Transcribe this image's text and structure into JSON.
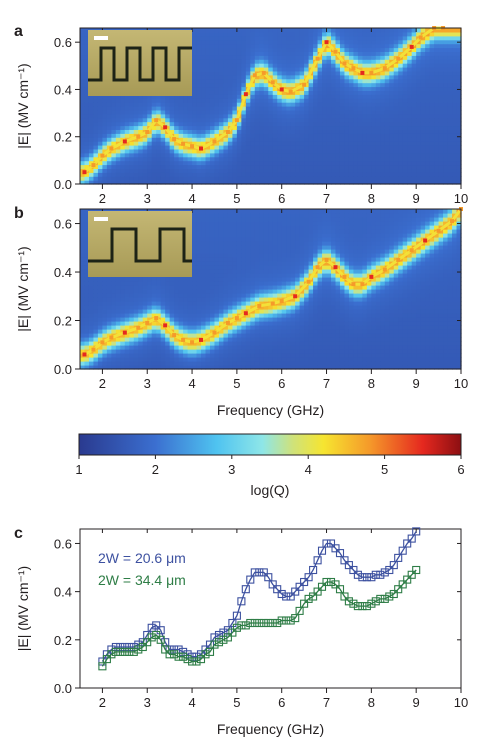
{
  "figure": {
    "x_axis_label": "Frequency (GHz)",
    "y_axis_label": "|E| (MV cm⁻¹)",
    "colorbar_label": "log(Q)"
  },
  "chart_data": [
    {
      "panel": "a",
      "type": "heatmap",
      "xlabel": "Frequency (GHz)",
      "ylabel": "|E| (MV cm⁻¹)",
      "xlim": [
        1.5,
        10
      ],
      "ylim": [
        0,
        0.66
      ],
      "x_ticks": [
        "2",
        "3",
        "4",
        "5",
        "6",
        "7",
        "8",
        "9",
        "10"
      ],
      "y_ticks": [
        "0.0",
        "0.2",
        "0.4",
        "0.6"
      ],
      "colorbar_range": [
        1,
        6
      ],
      "ridge": {
        "x": [
          1.6,
          1.8,
          2.0,
          2.2,
          2.5,
          2.8,
          3.0,
          3.2,
          3.4,
          3.6,
          3.8,
          4.0,
          4.2,
          4.5,
          4.8,
          5.0,
          5.2,
          5.4,
          5.6,
          5.8,
          6.0,
          6.2,
          6.5,
          6.8,
          7.0,
          7.2,
          7.4,
          7.6,
          7.8,
          8.0,
          8.3,
          8.6,
          8.9,
          9.1,
          9.4,
          9.6
        ],
        "y": [
          0.05,
          0.08,
          0.12,
          0.15,
          0.18,
          0.2,
          0.22,
          0.27,
          0.24,
          0.19,
          0.17,
          0.16,
          0.15,
          0.18,
          0.22,
          0.27,
          0.38,
          0.46,
          0.47,
          0.43,
          0.4,
          0.39,
          0.42,
          0.53,
          0.6,
          0.56,
          0.51,
          0.49,
          0.47,
          0.47,
          0.49,
          0.53,
          0.58,
          0.62,
          0.66,
          0.66
        ]
      }
    },
    {
      "panel": "b",
      "type": "heatmap",
      "xlabel": "Frequency (GHz)",
      "ylabel": "|E| (MV cm⁻¹)",
      "xlim": [
        1.5,
        10
      ],
      "ylim": [
        0,
        0.66
      ],
      "x_ticks": [
        "2",
        "3",
        "4",
        "5",
        "6",
        "7",
        "8",
        "9",
        "10"
      ],
      "y_ticks": [
        "0.0",
        "0.2",
        "0.4",
        "0.6"
      ],
      "colorbar_range": [
        1,
        6
      ],
      "ridge": {
        "x": [
          1.6,
          1.8,
          2.0,
          2.2,
          2.5,
          2.8,
          3.0,
          3.2,
          3.4,
          3.6,
          3.8,
          4.0,
          4.2,
          4.5,
          4.8,
          5.0,
          5.2,
          5.5,
          5.8,
          6.0,
          6.3,
          6.6,
          6.8,
          7.0,
          7.2,
          7.4,
          7.6,
          7.8,
          8.0,
          8.3,
          8.6,
          8.9,
          9.2,
          9.5,
          9.8,
          10.0
        ],
        "y": [
          0.06,
          0.08,
          0.11,
          0.13,
          0.15,
          0.17,
          0.19,
          0.21,
          0.18,
          0.14,
          0.12,
          0.11,
          0.12,
          0.15,
          0.19,
          0.21,
          0.23,
          0.26,
          0.27,
          0.28,
          0.3,
          0.36,
          0.42,
          0.45,
          0.42,
          0.38,
          0.35,
          0.35,
          0.38,
          0.41,
          0.45,
          0.49,
          0.53,
          0.57,
          0.61,
          0.66
        ]
      }
    },
    {
      "panel": "c",
      "type": "line",
      "xlabel": "Frequency (GHz)",
      "ylabel": "|E| (MV cm⁻¹)",
      "xlim": [
        1.5,
        10
      ],
      "ylim": [
        0,
        0.66
      ],
      "x_ticks": [
        "2",
        "3",
        "4",
        "5",
        "6",
        "7",
        "8",
        "9",
        "10"
      ],
      "y_ticks": [
        "0.0",
        "0.2",
        "0.4",
        "0.6"
      ],
      "legend": [
        "2W = 20.6 μm",
        "2W = 34.4 μm"
      ],
      "series": [
        {
          "name": "2W = 20.6 μm",
          "color": "#3d51a0",
          "x": [
            2.0,
            2.1,
            2.2,
            2.3,
            2.4,
            2.5,
            2.6,
            2.7,
            2.8,
            2.9,
            3.0,
            3.1,
            3.2,
            3.3,
            3.4,
            3.5,
            3.6,
            3.7,
            3.8,
            3.9,
            4.0,
            4.1,
            4.2,
            4.3,
            4.4,
            4.5,
            4.6,
            4.7,
            4.8,
            4.9,
            5.0,
            5.1,
            5.2,
            5.3,
            5.4,
            5.5,
            5.6,
            5.7,
            5.8,
            5.9,
            6.0,
            6.1,
            6.2,
            6.3,
            6.4,
            6.5,
            6.6,
            6.7,
            6.8,
            6.9,
            7.0,
            7.1,
            7.2,
            7.3,
            7.4,
            7.5,
            7.6,
            7.7,
            7.8,
            7.9,
            8.0,
            8.1,
            8.2,
            8.3,
            8.4,
            8.5,
            8.6,
            8.7,
            8.8,
            8.9,
            9.0
          ],
          "y": [
            0.11,
            0.14,
            0.16,
            0.17,
            0.17,
            0.17,
            0.17,
            0.17,
            0.18,
            0.19,
            0.22,
            0.25,
            0.26,
            0.24,
            0.19,
            0.16,
            0.16,
            0.16,
            0.15,
            0.14,
            0.13,
            0.13,
            0.14,
            0.16,
            0.18,
            0.21,
            0.22,
            0.23,
            0.24,
            0.27,
            0.3,
            0.36,
            0.41,
            0.45,
            0.48,
            0.48,
            0.48,
            0.46,
            0.43,
            0.41,
            0.39,
            0.38,
            0.38,
            0.4,
            0.42,
            0.44,
            0.46,
            0.49,
            0.53,
            0.57,
            0.6,
            0.6,
            0.58,
            0.56,
            0.53,
            0.51,
            0.49,
            0.47,
            0.46,
            0.46,
            0.46,
            0.47,
            0.47,
            0.48,
            0.49,
            0.51,
            0.54,
            0.57,
            0.6,
            0.62,
            0.65
          ]
        },
        {
          "name": "2W = 34.4 μm",
          "color": "#2e7d46",
          "x": [
            2.0,
            2.1,
            2.2,
            2.3,
            2.4,
            2.5,
            2.6,
            2.7,
            2.8,
            2.9,
            3.0,
            3.1,
            3.2,
            3.3,
            3.4,
            3.5,
            3.6,
            3.7,
            3.8,
            3.9,
            4.0,
            4.1,
            4.2,
            4.3,
            4.4,
            4.5,
            4.6,
            4.7,
            4.8,
            4.9,
            5.0,
            5.1,
            5.2,
            5.3,
            5.4,
            5.5,
            5.6,
            5.7,
            5.8,
            5.9,
            6.0,
            6.1,
            6.2,
            6.3,
            6.4,
            6.5,
            6.6,
            6.7,
            6.8,
            6.9,
            7.0,
            7.1,
            7.2,
            7.3,
            7.4,
            7.5,
            7.6,
            7.7,
            7.8,
            7.9,
            8.0,
            8.1,
            8.2,
            8.3,
            8.4,
            8.5,
            8.6,
            8.7,
            8.8,
            8.9,
            9.0
          ],
          "y": [
            0.09,
            0.12,
            0.14,
            0.15,
            0.15,
            0.15,
            0.15,
            0.15,
            0.16,
            0.17,
            0.19,
            0.21,
            0.22,
            0.2,
            0.16,
            0.14,
            0.14,
            0.13,
            0.13,
            0.12,
            0.11,
            0.11,
            0.12,
            0.14,
            0.15,
            0.18,
            0.19,
            0.2,
            0.21,
            0.23,
            0.25,
            0.26,
            0.26,
            0.27,
            0.27,
            0.27,
            0.27,
            0.27,
            0.27,
            0.27,
            0.28,
            0.28,
            0.28,
            0.29,
            0.32,
            0.35,
            0.37,
            0.38,
            0.4,
            0.42,
            0.44,
            0.44,
            0.43,
            0.41,
            0.38,
            0.36,
            0.35,
            0.34,
            0.34,
            0.34,
            0.35,
            0.36,
            0.37,
            0.37,
            0.38,
            0.39,
            0.41,
            0.43,
            0.45,
            0.47,
            0.49
          ]
        }
      ]
    }
  ]
}
